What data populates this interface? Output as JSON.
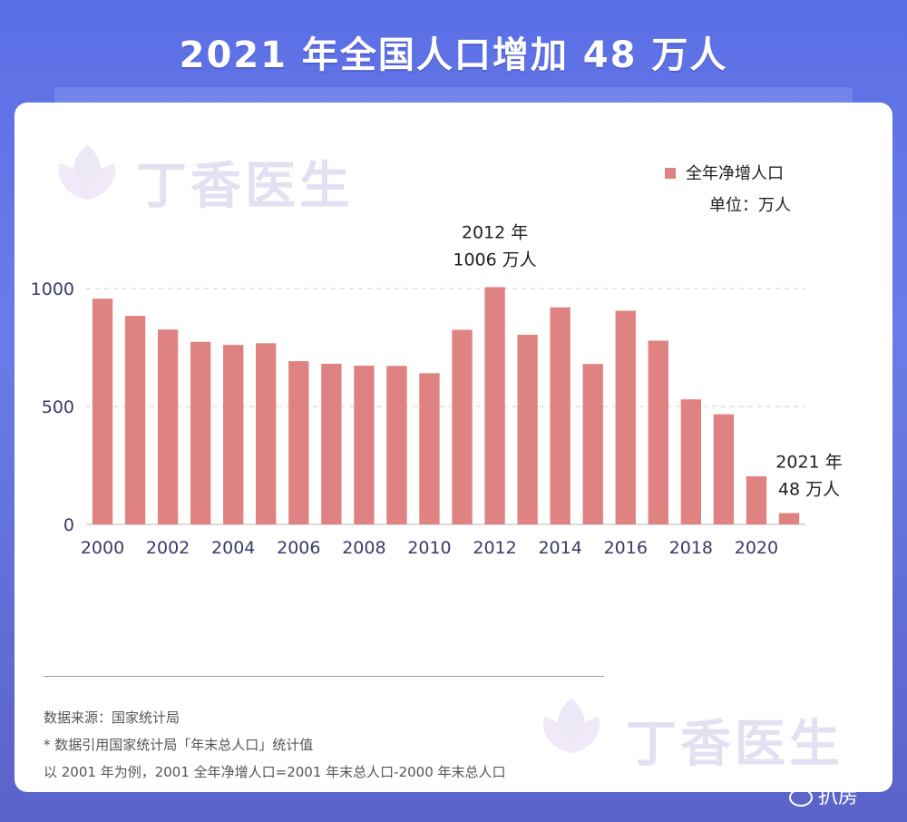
{
  "title": "2021 年全国人口增加 48 万人",
  "watermark": "丁香医生",
  "legend": {
    "label": "全年净增人口",
    "unit": "单位：万人"
  },
  "colors": {
    "bar": "#df8382",
    "axis_text": "#3a3a6a",
    "grid": "#cccccc"
  },
  "chart_data": {
    "type": "bar",
    "categories": [
      "2000",
      "2001",
      "2002",
      "2003",
      "2004",
      "2005",
      "2006",
      "2007",
      "2008",
      "2009",
      "2010",
      "2011",
      "2012",
      "2013",
      "2014",
      "2015",
      "2016",
      "2017",
      "2018",
      "2019",
      "2020",
      "2021"
    ],
    "values": [
      957,
      884,
      826,
      774,
      761,
      768,
      692,
      681,
      673,
      672,
      641,
      825,
      1006,
      804,
      920,
      680,
      906,
      779,
      530,
      467,
      204,
      48
    ],
    "x_tick_labels": [
      "2000",
      "2002",
      "2004",
      "2006",
      "2008",
      "2010",
      "2012",
      "2014",
      "2016",
      "2018",
      "2020"
    ],
    "y_ticks": [
      0,
      500,
      1000
    ],
    "ylim": [
      0,
      1000
    ],
    "legend_position": "top-right",
    "grid": true,
    "annotations": [
      {
        "category": "2012",
        "line1": "2012 年",
        "line2": "1006 万人"
      },
      {
        "category": "2021",
        "line1": "2021 年",
        "line2": "48 万人"
      }
    ]
  },
  "notes": [
    "数据来源：国家统计局",
    "* 数据引用国家统计局「年末总人口」统计值",
    "以 2001 年为例，2001 全年净增人口=2001 年末总人口-2000 年末总人口"
  ],
  "corner_label": "扒房"
}
